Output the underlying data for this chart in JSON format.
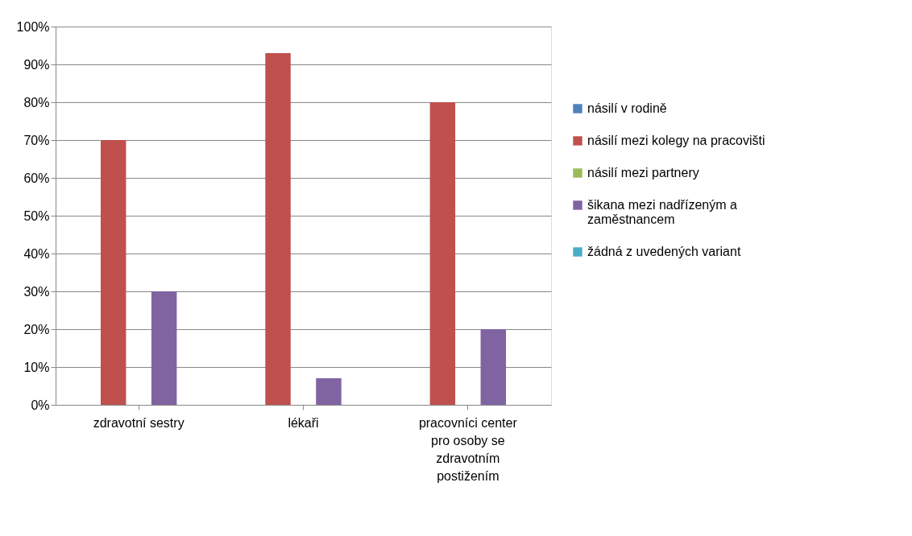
{
  "chart_data": {
    "type": "bar",
    "categories": [
      "zdravotní sestry",
      "lékaři",
      "pracovníci center pro osoby se zdravotním postižením"
    ],
    "series": [
      {
        "name": "násilí v rodině",
        "color": "#4f81bd",
        "values": [
          0,
          0,
          0
        ]
      },
      {
        "name": "násilí mezi kolegy na pracovišti",
        "color": "#c0504d",
        "values": [
          70,
          93,
          80
        ]
      },
      {
        "name": "násilí mezi partnery",
        "color": "#9bbb59",
        "values": [
          0,
          0,
          0
        ]
      },
      {
        "name": "šikana mezi nadřízeným a zaměstnancem",
        "color": "#8064a2",
        "values": [
          30,
          7,
          20
        ]
      },
      {
        "name": "žádná z uvedených variant",
        "color": "#4bacc6",
        "values": [
          0,
          0,
          0
        ]
      }
    ],
    "ylim": [
      0,
      100
    ],
    "yticks": [
      {
        "value": 0,
        "label": "0%"
      },
      {
        "value": 10,
        "label": "10%"
      },
      {
        "value": 20,
        "label": "20%"
      },
      {
        "value": 30,
        "label": "30%"
      },
      {
        "value": 40,
        "label": "40%"
      },
      {
        "value": 50,
        "label": "50%"
      },
      {
        "value": 60,
        "label": "60%"
      },
      {
        "value": 70,
        "label": "70%"
      },
      {
        "value": 80,
        "label": "80%"
      },
      {
        "value": 90,
        "label": "90%"
      },
      {
        "value": 100,
        "label": "100%"
      }
    ],
    "grid": "y",
    "legend": "right"
  }
}
